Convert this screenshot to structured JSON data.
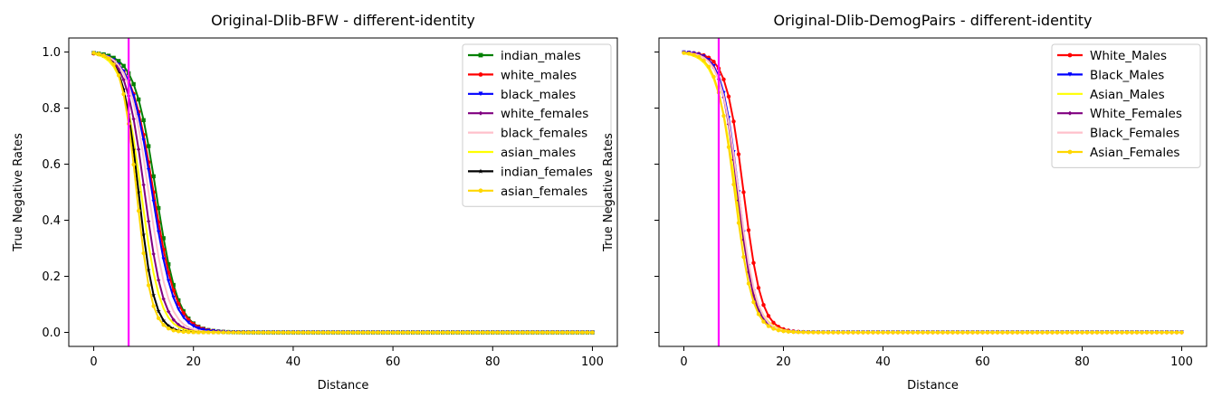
{
  "chart_data": [
    {
      "type": "line",
      "title": "Original-Dlib-BFW - different-identity",
      "xlabel": "Distance",
      "ylabel": "True Negative Rates",
      "xlim": [
        -5,
        105
      ],
      "ylim": [
        -0.05,
        1.05
      ],
      "xticks": [
        0,
        20,
        40,
        60,
        80,
        100
      ],
      "yticks": [
        0.0,
        0.2,
        0.4,
        0.6,
        0.8,
        1.0
      ],
      "ytick_labels": [
        "0.0",
        "0.2",
        "0.4",
        "0.6",
        "0.8",
        "1.0"
      ],
      "show_ytick_labels": true,
      "vline_x": 7,
      "vline_color": "#ff00ff",
      "legend_position": "upper right",
      "x_range": [
        0,
        100
      ],
      "series": [
        {
          "name": "indian_males",
          "color": "#008000",
          "marker": "square",
          "center": 12.5,
          "scale": 2.2
        },
        {
          "name": "white_males",
          "color": "#ff0000",
          "marker": "circle",
          "center": 12.0,
          "scale": 2.3
        },
        {
          "name": "black_males",
          "color": "#0000ff",
          "marker": "triangle",
          "center": 11.7,
          "scale": 2.2
        },
        {
          "name": "white_females",
          "color": "#800080",
          "marker": "diamond",
          "center": 10.2,
          "scale": 1.9
        },
        {
          "name": "black_females",
          "color": "#ffc0cb",
          "marker": "none",
          "center": 11.0,
          "scale": 2.0
        },
        {
          "name": "asian_males",
          "color": "#ffff00",
          "marker": "none",
          "center": 9.5,
          "scale": 1.9
        },
        {
          "name": "indian_females",
          "color": "#000000",
          "marker": "star",
          "center": 9.0,
          "scale": 1.6
        },
        {
          "name": "asian_females",
          "color": "#ffd700",
          "marker": "circle",
          "center": 8.6,
          "scale": 1.5
        }
      ]
    },
    {
      "type": "line",
      "title": "Original-Dlib-DemogPairs - different-identity",
      "xlabel": "Distance",
      "ylabel": "True Negative Rates",
      "xlim": [
        -5,
        105
      ],
      "ylim": [
        -0.05,
        1.05
      ],
      "xticks": [
        0,
        20,
        40,
        60,
        80,
        100
      ],
      "yticks": [
        0.0,
        0.2,
        0.4,
        0.6,
        0.8,
        1.0
      ],
      "ytick_labels": [
        "",
        "",
        "",
        "",
        "",
        ""
      ],
      "show_ytick_labels": false,
      "vline_x": 7,
      "vline_color": "#ff00ff",
      "legend_position": "upper right",
      "x_range": [
        0,
        100
      ],
      "series": [
        {
          "name": "White_Males",
          "color": "#ff0000",
          "marker": "circle",
          "center": 12.0,
          "scale": 1.8
        },
        {
          "name": "Black_Males",
          "color": "#0000ff",
          "marker": "triangle",
          "center": 11.0,
          "scale": 1.7
        },
        {
          "name": "Asian_Males",
          "color": "#ffff00",
          "marker": "none",
          "center": 10.5,
          "scale": 2.0
        },
        {
          "name": "White_Females",
          "color": "#800080",
          "marker": "diamond",
          "center": 10.8,
          "scale": 1.7
        },
        {
          "name": "Black_Females",
          "color": "#ffc0cb",
          "marker": "none",
          "center": 11.0,
          "scale": 1.8
        },
        {
          "name": "Asian_Females",
          "color": "#ffd700",
          "marker": "circle",
          "center": 10.2,
          "scale": 1.8
        }
      ]
    }
  ]
}
